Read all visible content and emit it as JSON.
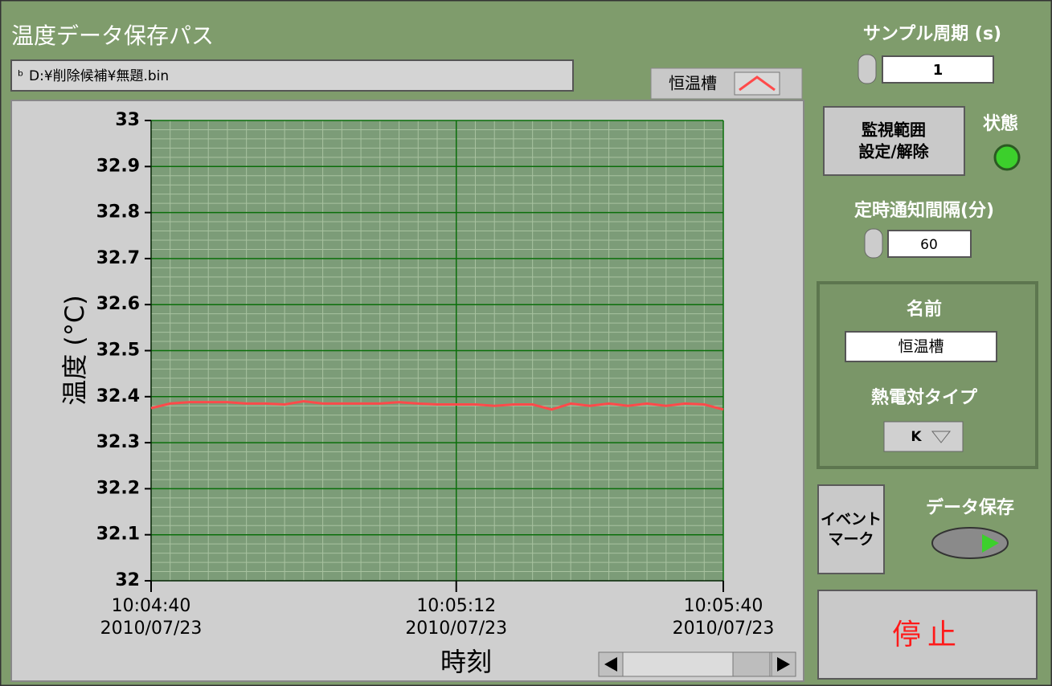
{
  "path_label": "温度データ保存パス",
  "path_value": "D:¥削除候補¥無題.bin",
  "chart_data": {
    "type": "line",
    "y_label": "温度 (°C)",
    "x_label": "時刻",
    "x": [
      36280,
      36282,
      36284,
      36286,
      36288,
      36290,
      36292,
      36294,
      36296,
      36298,
      36300,
      36302,
      36304,
      36306,
      36308,
      36310,
      36312,
      36314,
      36316,
      36318,
      36320,
      36322,
      36324,
      36326,
      36328,
      36330,
      36332,
      36334,
      36336,
      36338,
      36340
    ],
    "series": [
      {
        "name": "恒温槽",
        "color": "#ff4a4a",
        "values": [
          32.375,
          32.385,
          32.388,
          32.388,
          32.388,
          32.385,
          32.385,
          32.383,
          32.39,
          32.385,
          32.385,
          32.385,
          32.385,
          32.388,
          32.385,
          32.383,
          32.383,
          32.383,
          32.38,
          32.383,
          32.383,
          32.372,
          32.385,
          32.38,
          32.385,
          32.38,
          32.385,
          32.38,
          32.385,
          32.383,
          32.372
        ]
      }
    ],
    "xlim": [
      36280,
      36340
    ],
    "xticks": [
      {
        "value": 36280,
        "label": "10:04:40",
        "date": "2010/07/23"
      },
      {
        "value": 36312,
        "label": "10:05:12",
        "date": "2010/07/23"
      },
      {
        "value": 36340,
        "label": "10:05:40",
        "date": "2010/07/23"
      }
    ],
    "ylim": [
      32,
      33
    ],
    "yticks": [
      32,
      32.1,
      32.2,
      32.3,
      32.4,
      32.5,
      32.6,
      32.7,
      32.8,
      32.9,
      33
    ],
    "grid": true
  },
  "controls": {
    "sample_period_label": "サンプル周期 (s)",
    "sample_period_value": "1",
    "monitor_button": [
      "監視範囲",
      "設定/解除"
    ],
    "status_label": "状態",
    "notify_label": "定時通知間隔(分)",
    "notify_value": "60",
    "name_label": "名前",
    "name_value": "恒温槽",
    "thermo_label": "熱電対タイプ",
    "thermo_value": "K",
    "event_button": [
      "イベント",
      "マーク"
    ],
    "save_label": "データ保存",
    "stop_button": "停止"
  }
}
